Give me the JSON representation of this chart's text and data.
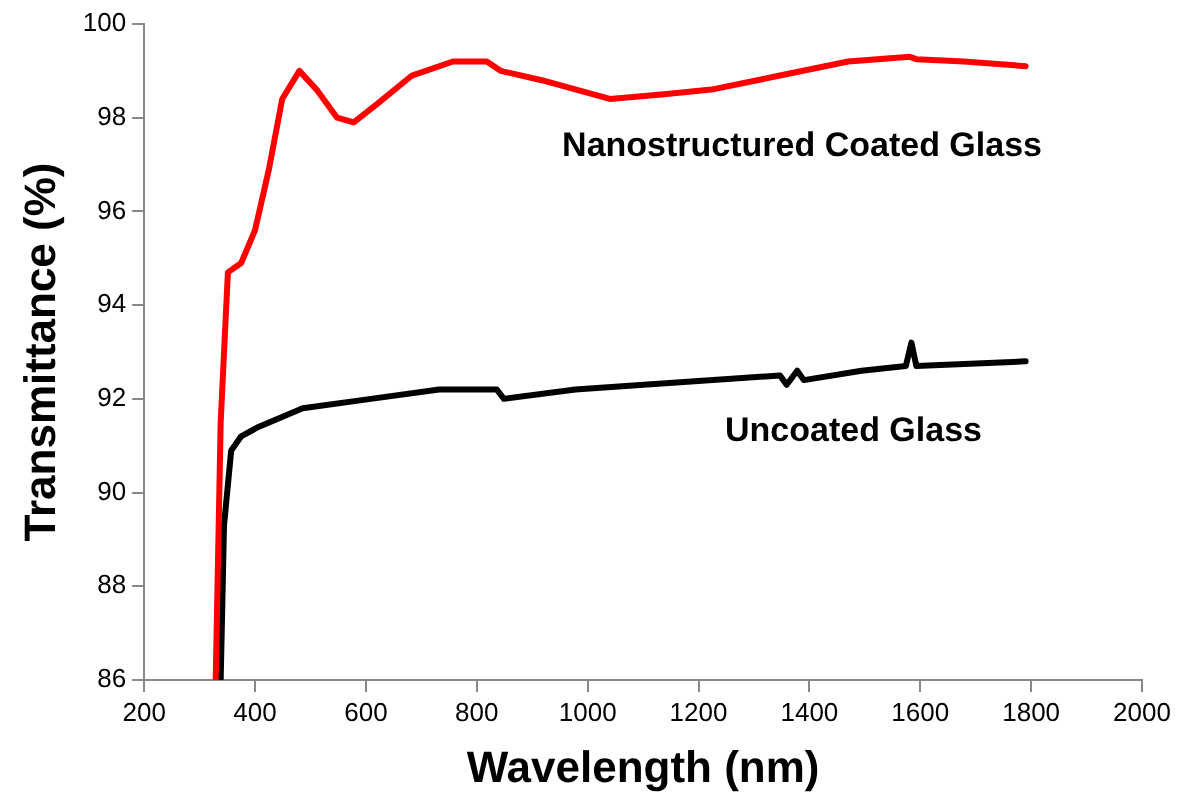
{
  "chart_data": {
    "type": "line",
    "xlabel": "Wavelength (nm)",
    "ylabel": "Transmittance (%)",
    "xlim": [
      200,
      2000
    ],
    "xticks": [
      200,
      400,
      600,
      800,
      1000,
      1200,
      1400,
      1600,
      1800,
      2000
    ],
    "ylim": [
      86,
      100
    ],
    "yticks": [
      86,
      88,
      90,
      92,
      94,
      96,
      98,
      100
    ],
    "grid": false,
    "legend": false,
    "marker": "none",
    "line_style": "solid",
    "series": [
      {
        "name": "Nanostructured Coated Glass",
        "color": "#ff0000",
        "x": [
          329,
          338,
          351,
          375,
          400,
          425,
          449,
          480,
          511,
          548,
          578,
          621,
          683,
          757,
          818,
          843,
          917,
          1040,
          1138,
          1223,
          1347,
          1470,
          1581,
          1593,
          1679,
          1790
        ],
        "values": [
          86,
          91.5,
          94.7,
          94.9,
          95.6,
          96.9,
          98.4,
          99.0,
          98.6,
          98.0,
          97.9,
          98.3,
          98.9,
          99.2,
          99.2,
          99.0,
          98.8,
          98.4,
          98.5,
          98.6,
          98.9,
          99.2,
          99.3,
          99.25,
          99.2,
          99.1
        ]
      },
      {
        "name": "Uncoated Glass",
        "color": "#000000",
        "x": [
          338,
          344,
          357,
          375,
          406,
          486,
          609,
          732,
          836,
          849,
          978,
          1101,
          1347,
          1359,
          1378,
          1390,
          1494,
          1574,
          1584,
          1593,
          1790
        ],
        "values": [
          86,
          89.3,
          90.9,
          91.2,
          91.4,
          91.8,
          92.0,
          92.2,
          92.2,
          92.0,
          92.2,
          92.3,
          92.5,
          92.3,
          92.6,
          92.4,
          92.6,
          92.7,
          93.2,
          92.7,
          92.8
        ]
      }
    ]
  }
}
